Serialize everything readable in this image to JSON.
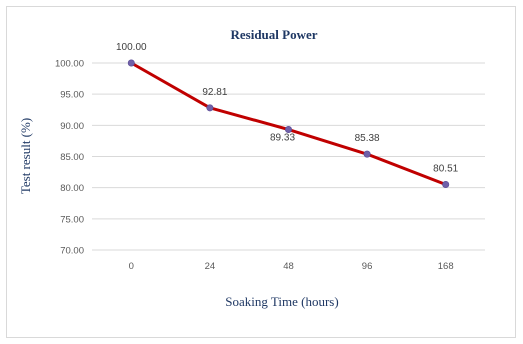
{
  "chart_data": {
    "type": "line",
    "title": "Residual Power",
    "xlabel": "Soaking Time (hours)",
    "ylabel": "Test result (%)",
    "categories": [
      "0",
      "24",
      "48",
      "96",
      "168"
    ],
    "series": [
      {
        "values": [
          100.0,
          92.81,
          89.33,
          85.38,
          80.51
        ],
        "labels": [
          "100.00",
          "92.81",
          "89.33",
          "85.38",
          "80.51"
        ],
        "line_color": "#c00000",
        "marker_color": "#7060a8"
      }
    ],
    "yticks": [
      "70.00",
      "75.00",
      "80.00",
      "85.00",
      "90.00",
      "95.00",
      "100.00"
    ],
    "ylim": [
      70,
      100
    ],
    "grid": true,
    "gridline_color": "#d9d9d9",
    "legend": "none"
  }
}
